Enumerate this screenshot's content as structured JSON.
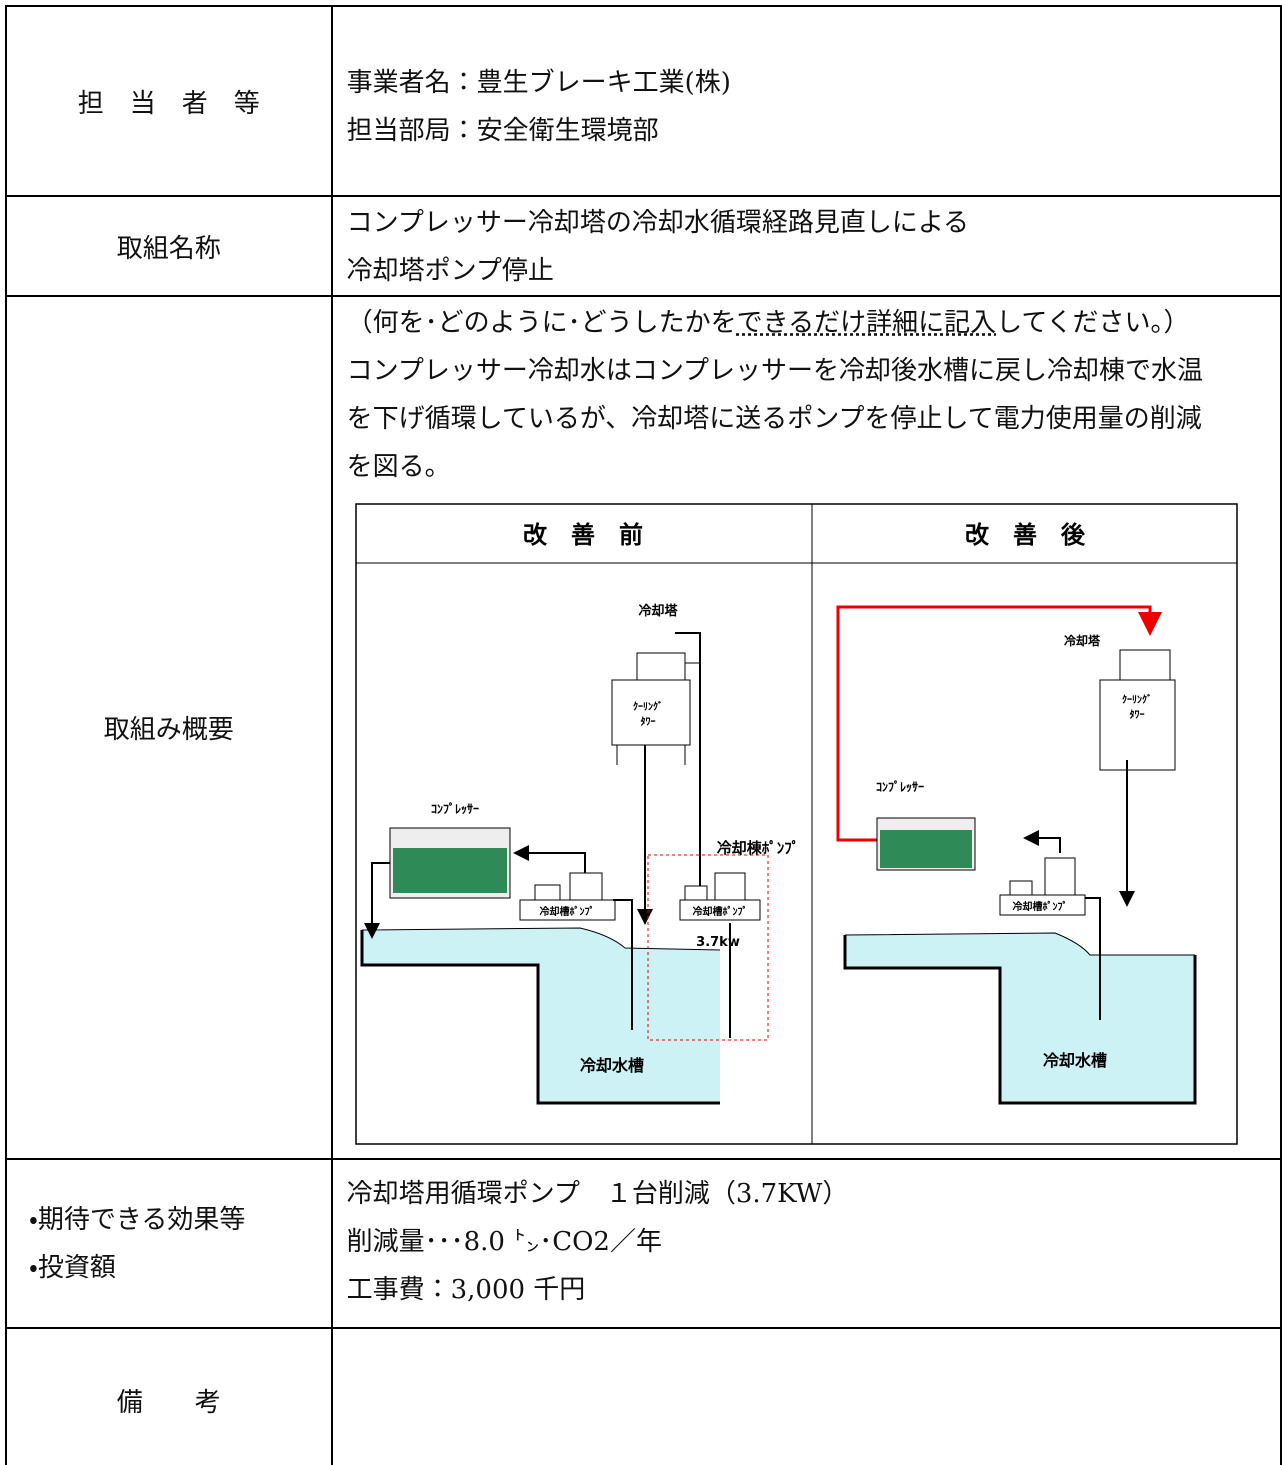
{
  "table": {
    "rows": [
      {
        "label": "担　当　者　等",
        "content": [
          "事業者名：豊生ブレーキ工業(株)",
          "担当部局：安全衛生環境部"
        ]
      },
      {
        "label": "取組名称",
        "content": [
          "コンプレッサー冷却塔の冷却水循環経路見直しによる",
          "冷却塔ポンプ停止"
        ]
      },
      {
        "label": "取組み概要",
        "note": [
          "（何を･どのように･どうしたかを",
          "できるだけ詳細に記入",
          "してください。）"
        ],
        "content": [
          "コンプレッサー冷却水はコンプレッサーを冷却後水槽に戻し冷却棟で水温",
          "を下げ循環しているが、冷却塔に送るポンプを停止して電力使用量の削減",
          "を図る。"
        ]
      },
      {
        "label": [
          "・期待できる効果等",
          "・投資額"
        ],
        "content": [
          "冷却塔用循環ポンプ　１台削減（3.7KW）",
          "削減量･･･8.0 ㌧･CO2／年",
          "工事費：3,000 千円"
        ]
      },
      {
        "label": "備　　考"
      }
    ]
  },
  "diagram": {
    "before": {
      "title": "改　善　前",
      "tower": "冷却塔",
      "tower_unit": [
        "ｸｰﾘﾝｸﾞ",
        "ﾀﾜｰ"
      ],
      "compressor": "ｺﾝﾌﾟﾚｯｻｰ",
      "tower_pump": "冷却棟ﾎﾟﾝﾌﾟ",
      "pump_1": "冷却槽ﾎﾟﾝﾌﾟ",
      "pump_2": "冷却槽ﾎﾟﾝﾌﾟ",
      "power": "3.7kw",
      "tank": "冷却水槽"
    },
    "after": {
      "title": "改　善　後",
      "tower": "冷却塔",
      "tower_unit": [
        "ｸｰﾘﾝｸﾞ",
        "ﾀﾜｰ"
      ],
      "compressor": "ｺﾝﾌﾟﾚｯｻｰ",
      "pump": "冷却槽ﾎﾟﾝﾌﾟ",
      "tank": "冷却水槽"
    }
  }
}
